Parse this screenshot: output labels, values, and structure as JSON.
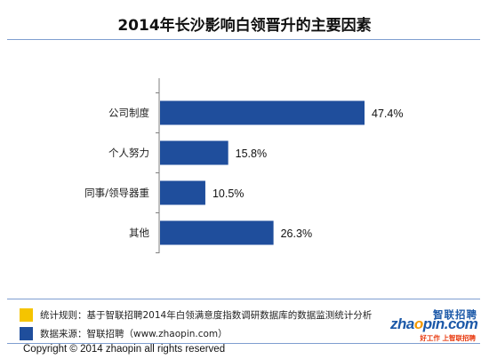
{
  "title": "2014年长沙影响白领晋升的主要因素",
  "chart_data": {
    "type": "bar",
    "orientation": "horizontal",
    "categories": [
      "公司制度",
      "个人努力",
      "同事/领导器重",
      "其他"
    ],
    "values": [
      47.4,
      15.8,
      10.5,
      26.3
    ],
    "value_labels": [
      "47.4%",
      "15.8%",
      "10.5%",
      "26.3%"
    ],
    "unit": "%",
    "xlim": [
      0,
      47.4
    ],
    "bar_color": "#1f4e9c",
    "axis_color": "#7f7f7f",
    "grid": false,
    "legend": "none"
  },
  "notes": [
    {
      "text": "统计规则：基于智联招聘2014年白领满意度指数调研数据库的数据监测统计分析",
      "color": "#f5c400"
    },
    {
      "text": "数据来源：智联招聘（www.zhaopin.com）",
      "color": "#1f4e9c"
    }
  ],
  "copyright": "Copyright   ©  2014 zhaopin all rights reserved",
  "logo": {
    "name_cn": "智联招聘",
    "name_en_a": "zha",
    "name_en_b": "o",
    "name_en_c": "pin.com",
    "slogan": "好工作  上智联招聘",
    "icon": "zhaopin-logo-icon"
  }
}
